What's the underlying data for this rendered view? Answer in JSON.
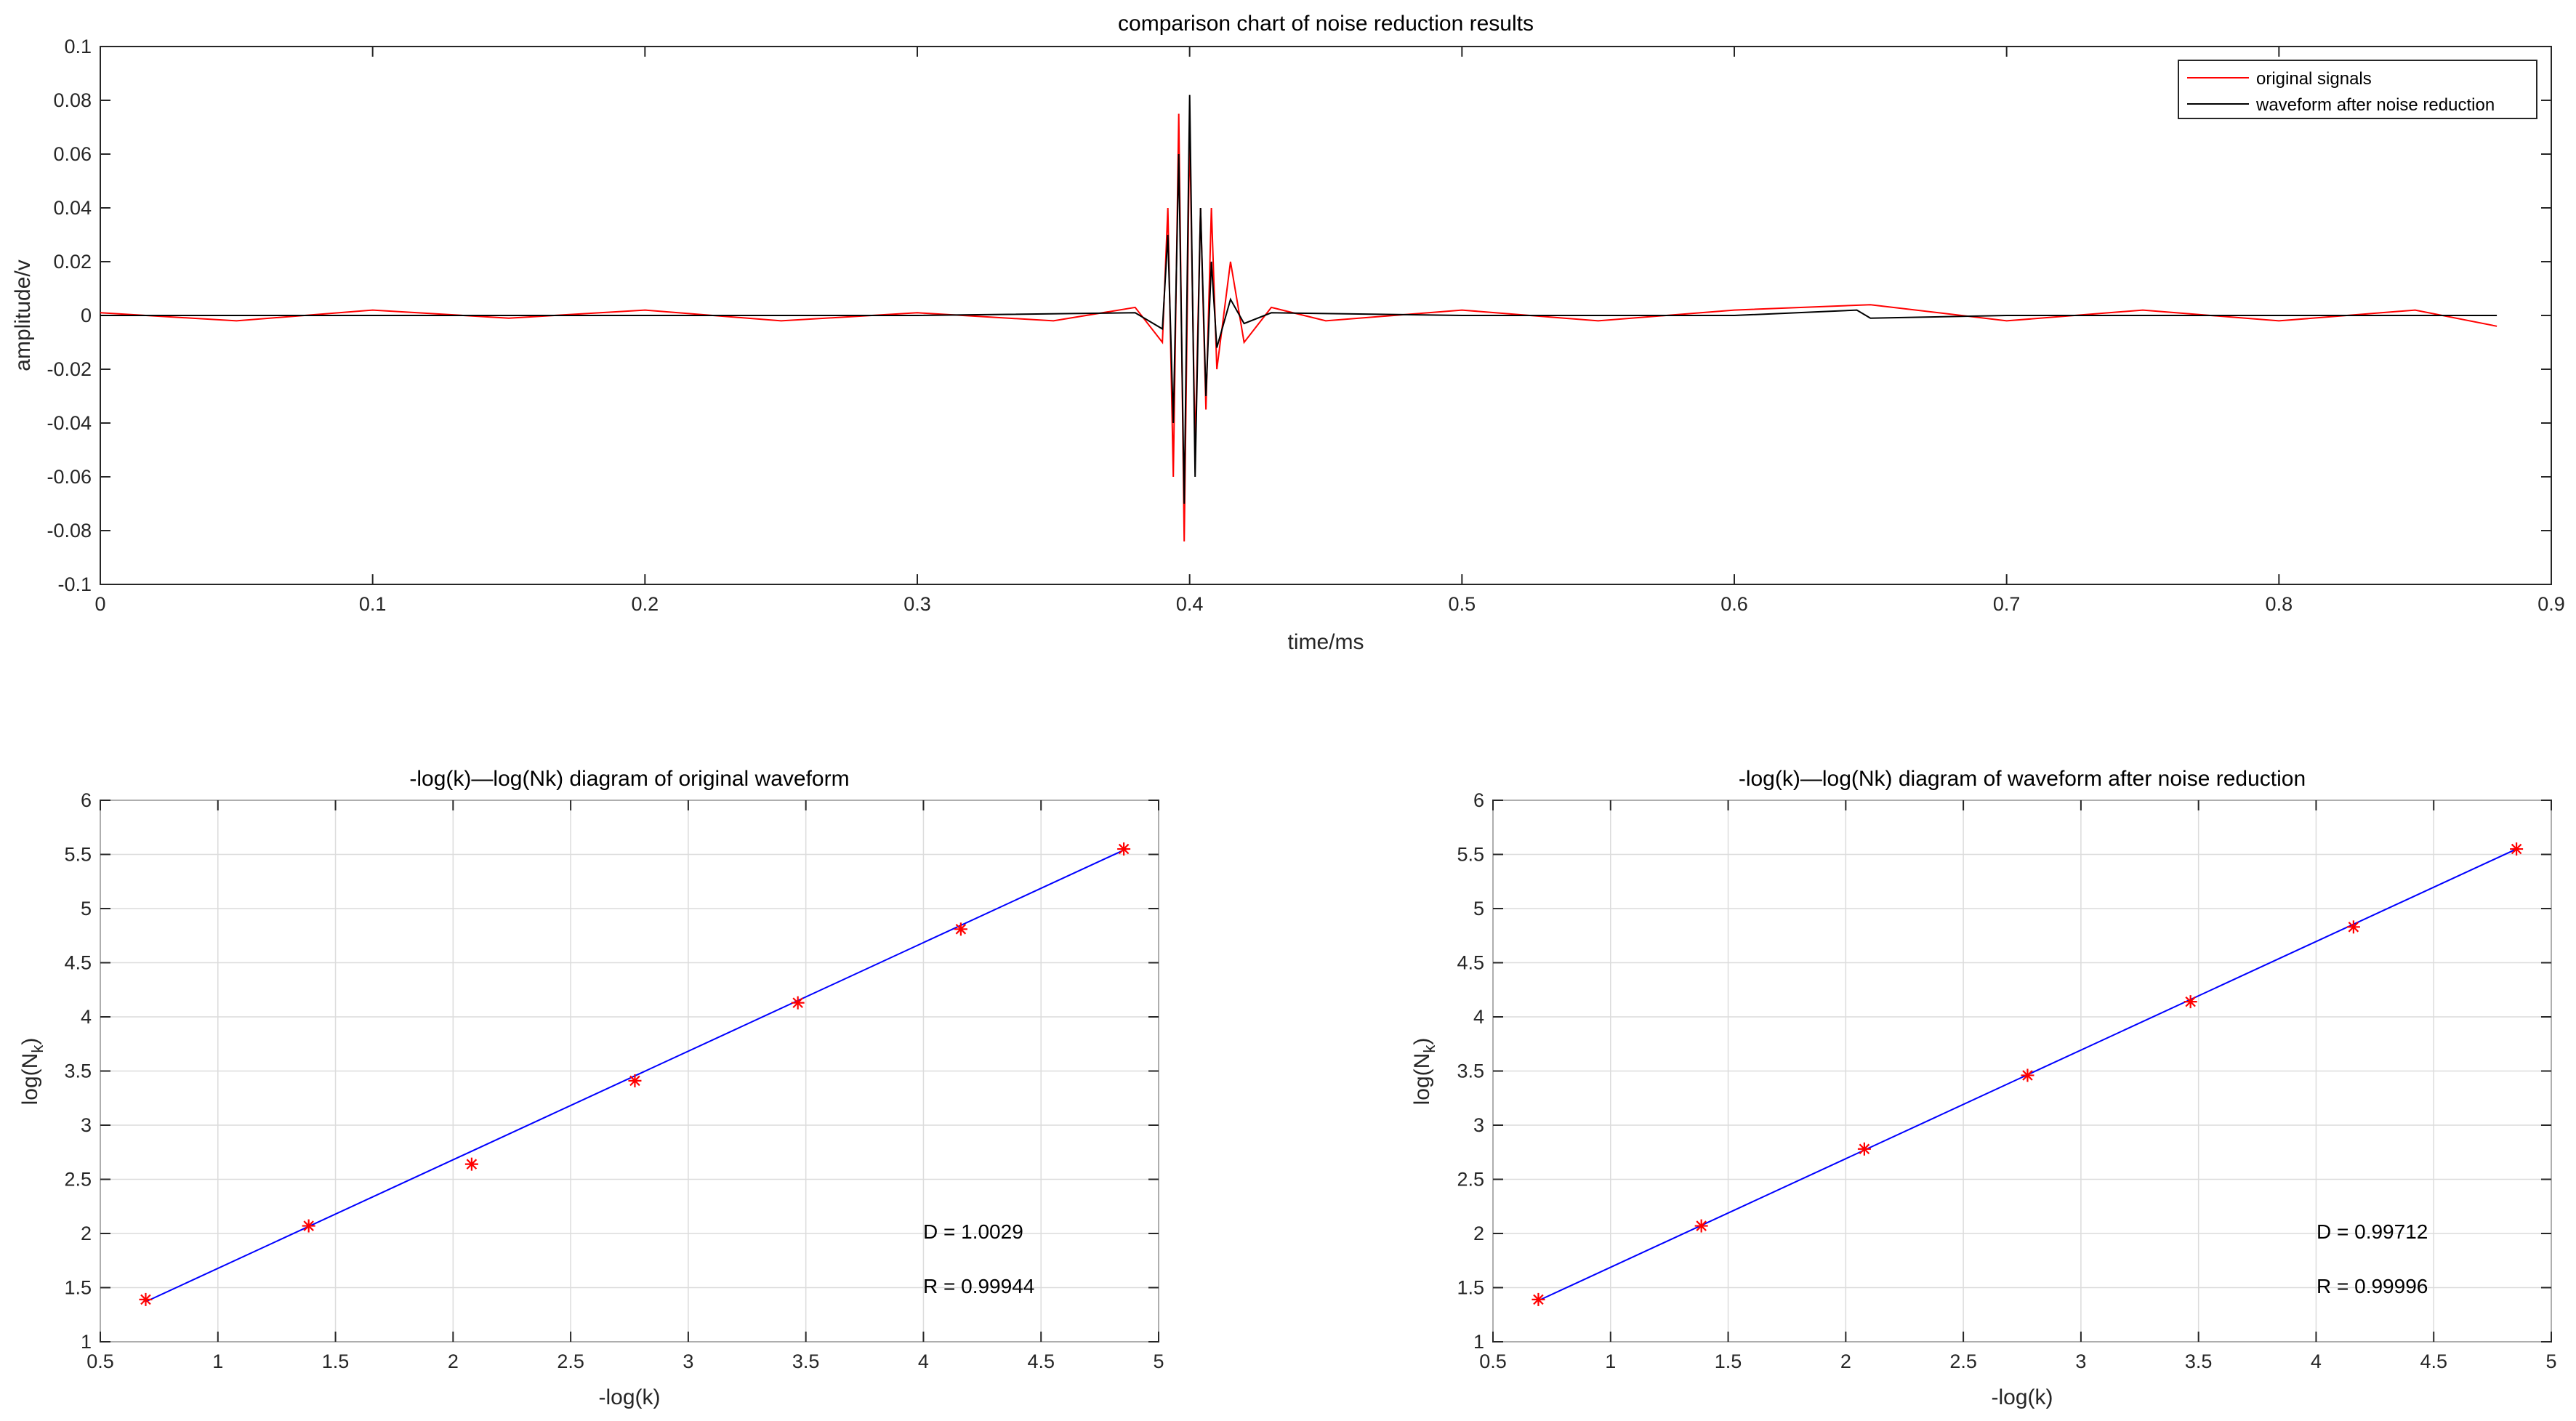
{
  "chart_data": [
    {
      "type": "line",
      "title": "comparison chart of noise reduction results",
      "xlabel": "time/ms",
      "ylabel": "amplitude/v",
      "xlim": [
        0,
        0.9
      ],
      "ylim": [
        -0.1,
        0.1
      ],
      "xticks": [
        "0",
        "0.1",
        "0.2",
        "0.3",
        "0.4",
        "0.5",
        "0.6",
        "0.7",
        "0.8",
        "0.9"
      ],
      "yticks": [
        "-0.1",
        "-0.08",
        "-0.06",
        "-0.04",
        "-0.02",
        "0",
        "0.02",
        "0.04",
        "0.06",
        "0.08",
        "0.1"
      ],
      "grid": false,
      "legend_position": "top-right",
      "series": [
        {
          "name": "original signals",
          "color": "#ff0000",
          "x": [
            0,
            0.05,
            0.1,
            0.15,
            0.2,
            0.25,
            0.3,
            0.35,
            0.38,
            0.39,
            0.392,
            0.394,
            0.396,
            0.398,
            0.4,
            0.402,
            0.404,
            0.406,
            0.408,
            0.41,
            0.415,
            0.42,
            0.43,
            0.45,
            0.5,
            0.55,
            0.6,
            0.65,
            0.7,
            0.75,
            0.8,
            0.85,
            0.88
          ],
          "values": [
            0.001,
            -0.002,
            0.002,
            -0.001,
            0.002,
            -0.002,
            0.001,
            -0.002,
            0.003,
            -0.01,
            0.04,
            -0.06,
            0.075,
            -0.084,
            0.07,
            -0.05,
            0.04,
            -0.035,
            0.04,
            -0.02,
            0.02,
            -0.01,
            0.003,
            -0.002,
            0.002,
            -0.002,
            0.002,
            0.004,
            -0.002,
            0.002,
            -0.002,
            0.002,
            -0.004
          ]
        },
        {
          "name": "waveform after noise reduction",
          "color": "#000000",
          "x": [
            0,
            0.1,
            0.2,
            0.3,
            0.38,
            0.39,
            0.392,
            0.394,
            0.396,
            0.398,
            0.4,
            0.402,
            0.404,
            0.406,
            0.408,
            0.41,
            0.415,
            0.42,
            0.43,
            0.5,
            0.6,
            0.645,
            0.65,
            0.7,
            0.8,
            0.88
          ],
          "values": [
            0,
            0,
            0,
            0,
            0.001,
            -0.005,
            0.03,
            -0.04,
            0.06,
            -0.07,
            0.082,
            -0.06,
            0.04,
            -0.03,
            0.02,
            -0.012,
            0.006,
            -0.003,
            0.001,
            0,
            0,
            0.002,
            -0.001,
            0,
            0,
            0
          ]
        }
      ]
    },
    {
      "type": "scatter",
      "title": "-log(k)—log(Nk) diagram of original waveform",
      "xlabel": "-log(k)",
      "ylabel": "log(N",
      "ylabel_sub": "k",
      "ylabel_close": ")",
      "xlim": [
        0.5,
        5
      ],
      "ylim": [
        1,
        6
      ],
      "xticks": [
        "0.5",
        "1",
        "1.5",
        "2",
        "2.5",
        "3",
        "3.5",
        "4",
        "4.5",
        "5"
      ],
      "yticks": [
        "1",
        "1.5",
        "2",
        "2.5",
        "3",
        "3.5",
        "4",
        "4.5",
        "5",
        "5.5",
        "6"
      ],
      "grid": true,
      "series": [
        {
          "marker": "*",
          "color": "#ff0000",
          "x": [
            0.693,
            1.386,
            2.079,
            2.773,
            3.466,
            4.159,
            4.852
          ],
          "values": [
            1.39,
            2.07,
            2.64,
            3.41,
            4.13,
            4.81,
            5.55
          ]
        },
        {
          "kind": "fit-line",
          "color": "#0000ff",
          "x": [
            0.693,
            4.852
          ],
          "values": [
            1.37,
            5.54
          ]
        }
      ],
      "annotations": [
        "D = 1.0029",
        "R = 0.99944"
      ]
    },
    {
      "type": "scatter",
      "title": "-log(k)—log(Nk) diagram of waveform after noise reduction",
      "xlabel": "-log(k)",
      "ylabel": "log(N",
      "ylabel_sub": "k",
      "ylabel_close": ")",
      "xlim": [
        0.5,
        5
      ],
      "ylim": [
        1,
        6
      ],
      "xticks": [
        "0.5",
        "1",
        "1.5",
        "2",
        "2.5",
        "3",
        "3.5",
        "4",
        "4.5",
        "5"
      ],
      "yticks": [
        "1",
        "1.5",
        "2",
        "2.5",
        "3",
        "3.5",
        "4",
        "4.5",
        "5",
        "5.5",
        "6"
      ],
      "grid": true,
      "series": [
        {
          "marker": "*",
          "color": "#ff0000",
          "x": [
            0.693,
            1.386,
            2.079,
            2.773,
            3.466,
            4.159,
            4.852
          ],
          "values": [
            1.39,
            2.07,
            2.78,
            3.46,
            4.14,
            4.83,
            5.55
          ]
        },
        {
          "kind": "fit-line",
          "color": "#0000ff",
          "x": [
            0.693,
            4.852
          ],
          "values": [
            1.38,
            5.55
          ]
        }
      ],
      "annotations": [
        "D = 0.99712",
        "R = 0.99996"
      ]
    }
  ]
}
